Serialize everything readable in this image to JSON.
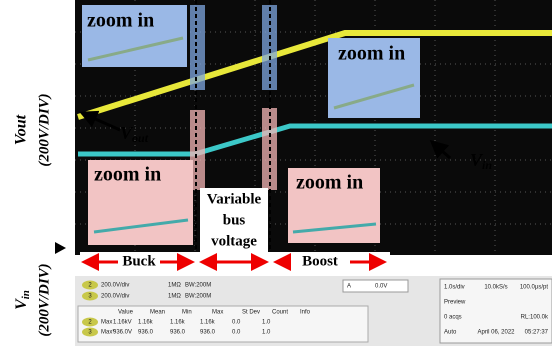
{
  "axis_labels": {
    "vout": {
      "main": "Vout",
      "scale": "(200V/DIV)"
    },
    "vin": {
      "main": "V",
      "sub": "in",
      "scale": "(200V/DIV)"
    }
  },
  "zoom_labels": [
    "zoom in",
    "zoom in",
    "zoom in",
    "zoom in"
  ],
  "annotations": {
    "vout": {
      "main": "V",
      "sub": "out"
    },
    "vin": {
      "main": "V",
      "sub": "in"
    }
  },
  "regions": {
    "buck": "Buck",
    "variable": [
      "Variable",
      "bus",
      "voltage"
    ],
    "boost": "Boost"
  },
  "scope": {
    "channels": [
      {
        "num": "2",
        "scale": "200.0V/div",
        "imp": "1MΩ",
        "bw": "BW:200M"
      },
      {
        "num": "3",
        "scale": "200.0V/div",
        "imp": "1MΩ",
        "bw": "BW:200M"
      }
    ],
    "trigger": {
      "src": "A",
      "level": "0.0V"
    },
    "table": {
      "header": [
        "Value",
        "Mean",
        "Min",
        "Max",
        "St Dev",
        "Count",
        "Info"
      ],
      "rows": [
        {
          "num": "2",
          "name": "Max",
          "cells": [
            "1.16kV",
            "1.16k",
            "1.16k",
            "1.16k",
            "0.0",
            "1.0"
          ]
        },
        {
          "num": "3",
          "name": "Max*",
          "cells": [
            "936.0V",
            "936.0",
            "936.0",
            "936.0",
            "0.0",
            "1.0"
          ]
        }
      ]
    },
    "status": [
      [
        "1.0s/div",
        "10.0kS/s",
        "100.0µs/pt"
      ],
      [
        "Preview"
      ],
      [
        "0 acqs",
        "RL:100.0k"
      ],
      [
        "Auto",
        "April 06, 2022",
        "05:27:37"
      ]
    ]
  }
}
